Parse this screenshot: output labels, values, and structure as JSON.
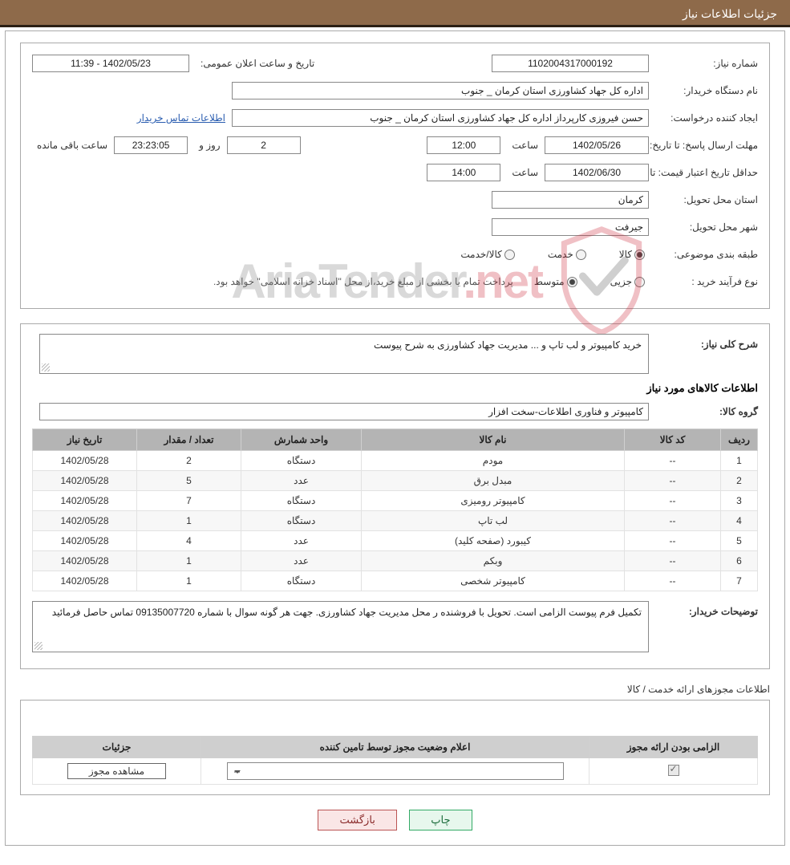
{
  "header": {
    "title": "جزئیات اطلاعات نیاز"
  },
  "top": {
    "need_no_label": "شماره نیاز:",
    "need_no": "1102004317000192",
    "announce_label": "تاریخ و ساعت اعلان عمومی:",
    "announce_val": "1402/05/23 - 11:39",
    "buyer_org_label": "نام دستگاه خریدار:",
    "buyer_org": "اداره کل جهاد کشاورزی استان کرمان _ جنوب",
    "requester_label": "ایجاد کننده درخواست:",
    "requester": "حسن فیروزی کارپرداز اداره کل جهاد کشاورزی استان کرمان _ جنوب",
    "contact_link": "اطلاعات تماس خریدار",
    "deadline_label": "مهلت ارسال پاسخ: تا تاریخ:",
    "deadline_date": "1402/05/26",
    "time_word": "ساعت",
    "deadline_time": "12:00",
    "remain_days": "2",
    "remain_days_word": "روز و",
    "remain_time": "23:23:05",
    "remain_suffix": "ساعت باقی مانده",
    "validity_label": "حداقل تاریخ اعتبار قیمت: تا تاریخ:",
    "validity_date": "1402/06/30",
    "validity_time": "14:00",
    "province_label": "استان محل تحویل:",
    "province": "کرمان",
    "city_label": "شهر محل تحویل:",
    "city": "جیرفت",
    "class_label": "طبقه بندی موضوعی:",
    "class_opts": [
      "کالا",
      "خدمت",
      "کالا/خدمت"
    ],
    "purchase_type_label": "نوع فرآیند خرید :",
    "purchase_opts": [
      "جزیی",
      "متوسط"
    ],
    "purchase_note": "پرداخت تمام یا بخشی از مبلغ خرید،از محل \"اسناد خزانه اسلامی\" خواهد بود."
  },
  "desc": {
    "general_label": "شرح کلی نیاز:",
    "general_text": "خرید کامپیوتر و لب تاپ و ... مدیریت جهاد کشاورزی به شرح پیوست",
    "items_title": "اطلاعات کالاهای مورد نیاز",
    "group_label": "گروه کالا:",
    "group_val": "کامپیوتر و فناوری اطلاعات-سخت افزار",
    "columns": [
      "ردیف",
      "کد کالا",
      "نام کالا",
      "واحد شمارش",
      "تعداد / مقدار",
      "تاریخ نیاز"
    ],
    "rows": [
      {
        "idx": "1",
        "code": "--",
        "name": "مودم",
        "unit": "دستگاه",
        "qty": "2",
        "date": "1402/05/28"
      },
      {
        "idx": "2",
        "code": "--",
        "name": "مبدل برق",
        "unit": "عدد",
        "qty": "5",
        "date": "1402/05/28"
      },
      {
        "idx": "3",
        "code": "--",
        "name": "کامپیوتر رومیزی",
        "unit": "دستگاه",
        "qty": "7",
        "date": "1402/05/28"
      },
      {
        "idx": "4",
        "code": "--",
        "name": "لب تاپ",
        "unit": "دستگاه",
        "qty": "1",
        "date": "1402/05/28"
      },
      {
        "idx": "5",
        "code": "--",
        "name": "کیبورد (صفحه کلید)",
        "unit": "عدد",
        "qty": "4",
        "date": "1402/05/28"
      },
      {
        "idx": "6",
        "code": "--",
        "name": "وبکم",
        "unit": "عدد",
        "qty": "1",
        "date": "1402/05/28"
      },
      {
        "idx": "7",
        "code": "--",
        "name": "کامپیوتر شخصی",
        "unit": "دستگاه",
        "qty": "1",
        "date": "1402/05/28"
      }
    ],
    "buyer_note_label": "توضیحات خریدار:",
    "buyer_note": "تکمیل فرم پیوست الزامی است. تحویل با فروشنده ر محل مدیریت جهاد کشاورزی. جهت هر گونه سوال با شماره 09135007720 تماس حاصل فرمائید"
  },
  "license": {
    "section_title": "اطلاعات مجوزهای ارائه خدمت / کالا",
    "columns": [
      "الزامی بودن ارائه مجوز",
      "اعلام وضعیت مجوز توسط تامین کننده",
      "جزئیات"
    ],
    "select_val": "--",
    "view_btn": "مشاهده مجوز"
  },
  "buttons": {
    "print": "چاپ",
    "back": "بازگشت"
  },
  "watermark": {
    "text_a": "AriaTender",
    "text_b": ".net"
  }
}
